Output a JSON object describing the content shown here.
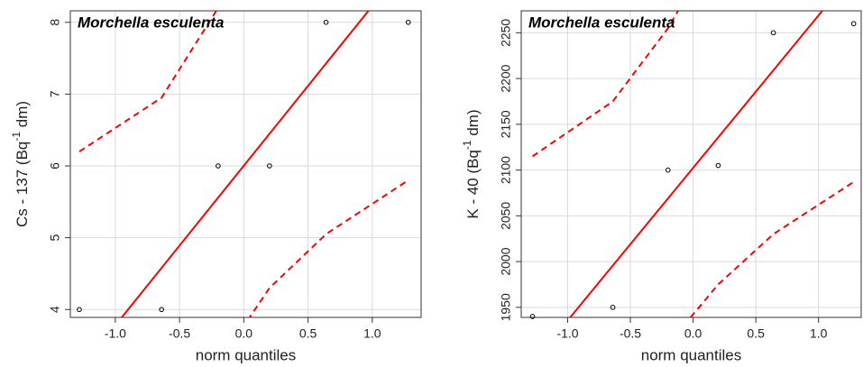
{
  "chart_data": [
    {
      "type": "qqplot",
      "annotation": "Morchella esculenta",
      "xlabel": "norm quantiles",
      "ylabel": [
        "Cs - 137 (Bq",
        "-1",
        " dm)"
      ],
      "xlim": [
        -1.35,
        1.38
      ],
      "ylim": [
        3.89,
        8.16
      ],
      "xticks": [
        {
          "value": -1,
          "label": "-1.0"
        },
        -0.5,
        {
          "value": 0,
          "label": "0.0"
        },
        0.5,
        {
          "value": 1,
          "label": "1.0"
        }
      ],
      "yticks": [
        4,
        5,
        6,
        7,
        8
      ],
      "grid": true,
      "points": {
        "x": [
          -1.28,
          -0.64,
          -0.2,
          0.2,
          0.64,
          1.28
        ],
        "values": [
          4,
          4,
          6,
          6,
          8,
          8
        ],
        "color": "#000000"
      },
      "reference_line": {
        "x": [
          -0.95,
          0.97
        ],
        "values": [
          3.89,
          8.16
        ],
        "color": "#ff0000"
      },
      "bands": [
        {
          "x": [
            -1.28,
            -0.64,
            -0.2
          ],
          "values": [
            6.2,
            6.95,
            8.2
          ],
          "color": "#ff0000"
        },
        {
          "x": [
            0.03,
            0.2,
            0.64,
            1.28
          ],
          "values": [
            3.85,
            4.3,
            5.05,
            5.8
          ],
          "color": "#ff0000"
        }
      ]
    },
    {
      "type": "qqplot",
      "annotation": "Morchella esculenta",
      "xlabel": "norm quantiles",
      "ylabel": [
        "K - 40  (Bq",
        "-1",
        " dm)"
      ],
      "xlim": [
        -1.37,
        1.34
      ],
      "ylim": [
        1939,
        2274
      ],
      "xticks": [
        {
          "value": -1,
          "label": "-1.0"
        },
        -0.5,
        {
          "value": 0,
          "label": "0.0"
        },
        0.5,
        {
          "value": 1,
          "label": "1.0"
        }
      ],
      "yticks": [
        1950,
        2000,
        2050,
        2100,
        2150,
        2200,
        2250
      ],
      "grid": true,
      "points": {
        "x": [
          -1.28,
          -0.64,
          -0.2,
          0.2,
          0.64,
          1.28
        ],
        "values": [
          1940,
          1950,
          2100,
          2105,
          2250,
          2260
        ],
        "color": "#000000"
      },
      "reference_line": {
        "x": [
          -0.98,
          1.03
        ],
        "values": [
          1939,
          2274
        ],
        "color": "#ff0000"
      },
      "bands": [
        {
          "x": [
            -1.28,
            -0.64,
            -0.2,
            -0.12
          ],
          "values": [
            2115,
            2175,
            2255,
            2274
          ],
          "color": "#ff0000"
        },
        {
          "x": [
            -0.02,
            0.2,
            0.64,
            1.28
          ],
          "values": [
            1939,
            1975,
            2030,
            2087
          ],
          "color": "#ff0000"
        }
      ]
    }
  ]
}
